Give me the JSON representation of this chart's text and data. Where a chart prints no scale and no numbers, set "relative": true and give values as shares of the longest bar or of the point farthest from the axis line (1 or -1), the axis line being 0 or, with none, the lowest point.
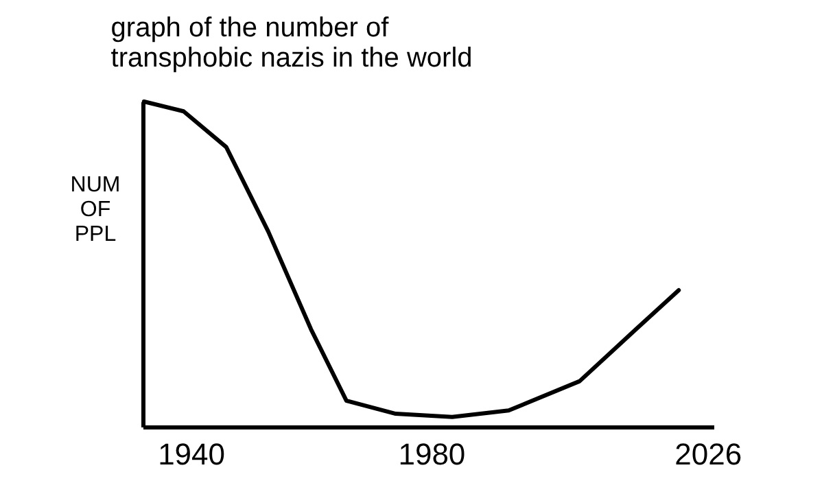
{
  "chart_data": {
    "type": "line",
    "title": "graph of the number of\ntransphobic nazis in the world",
    "ylabel": "NUM\nOF\nPPL",
    "relative": true,
    "x": [
      1932.2,
      1938.8,
      1945.9,
      1952.9,
      1960,
      1965.9,
      1974.1,
      1983.5,
      1992.9,
      2004.7,
      2014.1,
      2021.2
    ],
    "series": [
      {
        "color": "#000000",
        "values": [
          1.0,
          0.97,
          0.86,
          0.6,
          0.3,
          0.08,
          0.04,
          0.03,
          0.05,
          0.14,
          0.3,
          0.42
        ]
      }
    ],
    "xlim": [
      1932,
      2027
    ],
    "xticks": [
      1940,
      1980,
      2026
    ],
    "grid": false,
    "legend": false,
    "marker": "none",
    "line_style": "solid"
  }
}
